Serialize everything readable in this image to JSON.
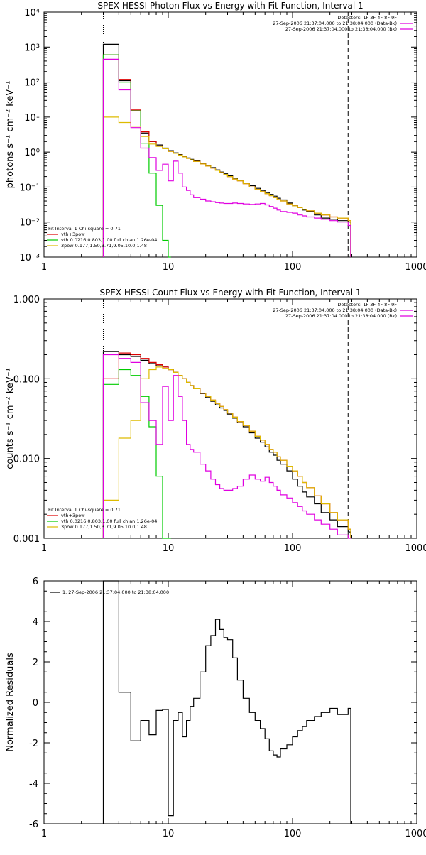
{
  "chart_data": [
    {
      "type": "line",
      "title": "SPEX HESSI Photon Flux vs Energy with Fit Function, Interval 1",
      "ylabel": "photons s⁻¹ cm⁻² keV⁻¹",
      "xlabel": "",
      "x_scale": "log",
      "y_scale": "log",
      "xlim": [
        1,
        1000
      ],
      "ylim": [
        0.001,
        10000
      ],
      "x_tick_labels": [
        "1",
        "10",
        "100",
        "1000"
      ],
      "y_tick_labels": [
        "10⁻³",
        "10⁻²",
        "10⁻¹",
        "10⁰",
        "10¹",
        "10²",
        "10³",
        "10⁴"
      ],
      "vlines": [
        {
          "x": 3,
          "style": "dotted",
          "color": "#000000"
        },
        {
          "x": 280,
          "style": "dashed",
          "color": "#000000"
        }
      ],
      "legend_top_right": [
        {
          "text": "Detectors: 1F 3F 4F 8F 9F",
          "color": "#000000"
        },
        {
          "text": "27-Sep-2006 21:37:04.000 to 21:38:04.000 (Data-Bk)",
          "color": "#e000e0"
        },
        {
          "text": "27-Sep-2006 21:37:04.000 to 21:38:04.000 (Bk)",
          "color": "#e000e0"
        }
      ],
      "legend_bottom_left": [
        {
          "text": "Fit Interval 1    Chi-square = 0.71",
          "color": "#000000"
        },
        {
          "text": "vth+3pow",
          "color": "#dd0000"
        },
        {
          "text": "vth 0.0216,0.803,1.00  full chian 1.26e-04",
          "color": "#00cc00"
        },
        {
          "text": "3pow 0.177,1.50,3.71,9.05,10.0,1.48",
          "color": "#ddbb00"
        }
      ],
      "series": [
        {
          "color": "#000000",
          "x": [
            3,
            4,
            5,
            6,
            7,
            8,
            9,
            10,
            11,
            12,
            13,
            14,
            15,
            16,
            18,
            20,
            22,
            24,
            26,
            28,
            30,
            33,
            36,
            40,
            45,
            50,
            55,
            60,
            65,
            70,
            75,
            80,
            90,
            100,
            110,
            120,
            130,
            150,
            170,
            200,
            230,
            280
          ],
          "y": [
            1200,
            110,
            15,
            3.5,
            2.0,
            1.6,
            1.3,
            1.1,
            0.95,
            0.85,
            0.75,
            0.68,
            0.62,
            0.56,
            0.48,
            0.41,
            0.36,
            0.31,
            0.27,
            0.24,
            0.21,
            0.18,
            0.155,
            0.13,
            0.11,
            0.092,
            0.08,
            0.07,
            0.062,
            0.055,
            0.048,
            0.043,
            0.035,
            0.029,
            0.026,
            0.022,
            0.02,
            0.016,
            0.013,
            0.012,
            0.011,
            0.01
          ]
        },
        {
          "color": "#dd0000",
          "x": [
            3,
            4,
            5,
            6,
            7,
            8,
            9,
            10,
            11,
            12,
            13,
            14,
            15,
            16,
            18,
            20,
            22,
            24,
            26,
            28,
            30,
            33,
            36,
            40,
            45,
            50,
            55,
            60,
            65,
            70,
            75,
            80,
            90,
            100,
            110,
            120,
            130,
            150,
            170,
            200,
            230,
            280
          ],
          "y": [
            600,
            120,
            16,
            3.8,
            2.0,
            1.5,
            1.25,
            1.05,
            0.92,
            0.82,
            0.73,
            0.66,
            0.6,
            0.54,
            0.46,
            0.4,
            0.35,
            0.3,
            0.26,
            0.23,
            0.2,
            0.17,
            0.15,
            0.125,
            0.1,
            0.085,
            0.074,
            0.065,
            0.057,
            0.05,
            0.044,
            0.04,
            0.033,
            0.029,
            0.026,
            0.023,
            0.021,
            0.018,
            0.016,
            0.014,
            0.013,
            0.011
          ]
        },
        {
          "color": "#00cc00",
          "x": [
            3,
            4,
            5,
            6,
            7,
            8,
            9,
            10
          ],
          "y": [
            600,
            100,
            15,
            1.8,
            0.25,
            0.03,
            0.003,
            0.001
          ]
        },
        {
          "color": "#ddbb00",
          "x": [
            3,
            4,
            5,
            6,
            7,
            8,
            9,
            10,
            11,
            12,
            13,
            14,
            15,
            16,
            18,
            20,
            22,
            24,
            26,
            28,
            30,
            33,
            36,
            40,
            45,
            50,
            55,
            60,
            65,
            70,
            75,
            80,
            90,
            100,
            110,
            120,
            130,
            150,
            170,
            200,
            230,
            280
          ],
          "y": [
            10,
            7,
            5.5,
            2.8,
            1.7,
            1.45,
            1.25,
            1.05,
            0.92,
            0.82,
            0.73,
            0.66,
            0.6,
            0.54,
            0.46,
            0.4,
            0.35,
            0.3,
            0.26,
            0.23,
            0.2,
            0.17,
            0.15,
            0.125,
            0.1,
            0.085,
            0.074,
            0.065,
            0.057,
            0.05,
            0.044,
            0.04,
            0.033,
            0.029,
            0.026,
            0.023,
            0.021,
            0.018,
            0.016,
            0.014,
            0.013,
            0.011
          ]
        },
        {
          "color": "#e000e0",
          "x": [
            3,
            4,
            5,
            6,
            7,
            8,
            9,
            10,
            11,
            12,
            13,
            14,
            15,
            16,
            18,
            20,
            22,
            24,
            26,
            28,
            30,
            33,
            36,
            40,
            45,
            50,
            55,
            60,
            65,
            70,
            75,
            80,
            90,
            100,
            110,
            120,
            130,
            150,
            170,
            200,
            230,
            280
          ],
          "y": [
            450,
            60,
            5,
            1.3,
            0.7,
            0.3,
            0.45,
            0.15,
            0.55,
            0.25,
            0.1,
            0.08,
            0.06,
            0.05,
            0.045,
            0.04,
            0.038,
            0.036,
            0.035,
            0.034,
            0.034,
            0.035,
            0.034,
            0.033,
            0.032,
            0.033,
            0.034,
            0.031,
            0.028,
            0.025,
            0.022,
            0.02,
            0.019,
            0.018,
            0.016,
            0.015,
            0.014,
            0.013,
            0.012,
            0.011,
            0.01,
            0.008
          ]
        }
      ]
    },
    {
      "type": "line",
      "title": "SPEX HESSI Count Flux vs Energy with Fit Function, Interval 1",
      "ylabel": "counts s⁻¹ cm⁻² keV⁻¹",
      "xlabel": "",
      "x_scale": "log",
      "y_scale": "log",
      "xlim": [
        1,
        1000
      ],
      "ylim": [
        0.001,
        1.0
      ],
      "x_tick_labels": [
        "1",
        "10",
        "100",
        "1000"
      ],
      "y_tick_labels": [
        "0.001",
        "0.010",
        "0.100",
        "1.000"
      ],
      "vlines": [
        {
          "x": 3,
          "style": "dotted",
          "color": "#000000"
        },
        {
          "x": 280,
          "style": "dashed",
          "color": "#000000"
        }
      ],
      "legend_top_right": [
        {
          "text": "Detectors: 1F 3F 4F 8F 9F",
          "color": "#000000"
        },
        {
          "text": "27-Sep-2006 21:37:04.000 to 21:38:04.000 (Data-Bk)",
          "color": "#e000e0"
        },
        {
          "text": "27-Sep-2006 21:37:04.000 to 21:38:04.000 (Bk)",
          "color": "#e000e0"
        }
      ],
      "legend_bottom_left": [
        {
          "text": "Fit Interval 1    Chi-square = 0.71",
          "color": "#000000"
        },
        {
          "text": "vth+3pow",
          "color": "#dd0000"
        },
        {
          "text": "vth 0.0216,0.803,1.00  full chian 1.26e-04",
          "color": "#00cc00"
        },
        {
          "text": "3pow 0.177,1.50,3.71,9.05,10.0,1.48",
          "color": "#ddbb00"
        }
      ],
      "series": [
        {
          "color": "#000000",
          "x": [
            3,
            4,
            5,
            6,
            7,
            8,
            9,
            10,
            11,
            12,
            13,
            14,
            15,
            16,
            18,
            20,
            22,
            24,
            26,
            28,
            30,
            33,
            36,
            40,
            45,
            50,
            55,
            60,
            65,
            70,
            75,
            80,
            90,
            100,
            110,
            120,
            130,
            150,
            170,
            200,
            230,
            280
          ],
          "y": [
            0.22,
            0.2,
            0.19,
            0.17,
            0.155,
            0.145,
            0.14,
            0.13,
            0.12,
            0.11,
            0.1,
            0.09,
            0.082,
            0.075,
            0.065,
            0.058,
            0.052,
            0.047,
            0.043,
            0.04,
            0.036,
            0.032,
            0.028,
            0.025,
            0.021,
            0.018,
            0.016,
            0.014,
            0.012,
            0.011,
            0.0095,
            0.0085,
            0.007,
            0.0055,
            0.0045,
            0.0038,
            0.0033,
            0.0027,
            0.0021,
            0.0017,
            0.0014,
            0.0012
          ]
        },
        {
          "color": "#dd0000",
          "x": [
            3,
            4,
            5,
            6,
            7,
            8,
            9,
            10,
            11,
            12,
            13,
            14,
            15,
            16,
            18,
            20,
            22,
            24,
            26,
            28,
            30,
            33,
            36,
            40,
            45,
            50,
            55,
            60,
            65,
            70,
            75,
            80,
            90,
            100,
            110,
            120,
            130,
            150,
            170,
            200,
            230,
            280
          ],
          "y": [
            0.1,
            0.21,
            0.2,
            0.18,
            0.16,
            0.15,
            0.14,
            0.13,
            0.12,
            0.11,
            0.1,
            0.09,
            0.082,
            0.075,
            0.066,
            0.06,
            0.054,
            0.049,
            0.045,
            0.041,
            0.037,
            0.033,
            0.029,
            0.026,
            0.022,
            0.019,
            0.017,
            0.015,
            0.013,
            0.012,
            0.0105,
            0.0095,
            0.008,
            0.007,
            0.006,
            0.005,
            0.0043,
            0.0034,
            0.0027,
            0.0021,
            0.0017,
            0.0013
          ]
        },
        {
          "color": "#00cc00",
          "x": [
            3,
            4,
            5,
            6,
            7,
            8,
            9,
            10
          ],
          "y": [
            0.085,
            0.13,
            0.11,
            0.06,
            0.025,
            0.006,
            0.001,
            0.001
          ]
        },
        {
          "color": "#ddbb00",
          "x": [
            3,
            4,
            5,
            6,
            7,
            8,
            9,
            10,
            11,
            12,
            13,
            14,
            15,
            16,
            18,
            20,
            22,
            24,
            26,
            28,
            30,
            33,
            36,
            40,
            45,
            50,
            55,
            60,
            65,
            70,
            75,
            80,
            90,
            100,
            110,
            120,
            130,
            150,
            170,
            200,
            230,
            280
          ],
          "y": [
            0.003,
            0.018,
            0.03,
            0.1,
            0.13,
            0.14,
            0.135,
            0.13,
            0.12,
            0.11,
            0.1,
            0.09,
            0.082,
            0.075,
            0.066,
            0.06,
            0.054,
            0.049,
            0.045,
            0.041,
            0.037,
            0.033,
            0.029,
            0.026,
            0.022,
            0.019,
            0.017,
            0.015,
            0.013,
            0.012,
            0.0105,
            0.0095,
            0.008,
            0.007,
            0.006,
            0.005,
            0.0043,
            0.0034,
            0.0027,
            0.0021,
            0.0017,
            0.0013
          ]
        },
        {
          "color": "#e000e0",
          "x": [
            3,
            4,
            5,
            6,
            7,
            8,
            9,
            10,
            11,
            12,
            13,
            14,
            15,
            16,
            18,
            20,
            22,
            24,
            26,
            28,
            30,
            33,
            36,
            40,
            45,
            50,
            55,
            60,
            65,
            70,
            75,
            80,
            90,
            100,
            110,
            120,
            130,
            150,
            170,
            200,
            230,
            280
          ],
          "y": [
            0.2,
            0.18,
            0.16,
            0.05,
            0.03,
            0.015,
            0.08,
            0.03,
            0.11,
            0.06,
            0.03,
            0.015,
            0.013,
            0.012,
            0.0085,
            0.007,
            0.0055,
            0.0047,
            0.0042,
            0.004,
            0.004,
            0.0042,
            0.0045,
            0.0055,
            0.0062,
            0.0055,
            0.0052,
            0.0058,
            0.005,
            0.0045,
            0.004,
            0.0035,
            0.0032,
            0.0028,
            0.0025,
            0.0022,
            0.002,
            0.0017,
            0.0015,
            0.0013,
            0.0011,
            0.0008
          ]
        }
      ]
    },
    {
      "type": "line",
      "title": "",
      "ylabel": "Normalized Residuals",
      "xlabel": "",
      "x_scale": "log",
      "y_scale": "linear",
      "xlim": [
        1,
        1000
      ],
      "ylim": [
        -6,
        6
      ],
      "x_tick_labels": [
        "1",
        "10",
        "100",
        "1000"
      ],
      "y_tick_labels": [
        "-6",
        "-4",
        "-2",
        "0",
        "2",
        "4",
        "6"
      ],
      "legend_top_left": [
        {
          "text": "1. 27-Sep-2006 21:37:04.000 to 21:38:04.000",
          "color": "#000000"
        }
      ],
      "series": [
        {
          "color": "#000000",
          "x": [
            3,
            4,
            5,
            6,
            7,
            8,
            9,
            10,
            11,
            12,
            13,
            14,
            15,
            16,
            18,
            20,
            22,
            24,
            26,
            28,
            30,
            33,
            36,
            40,
            45,
            50,
            55,
            60,
            65,
            70,
            75,
            80,
            90,
            100,
            110,
            120,
            130,
            150,
            170,
            200,
            230,
            280
          ],
          "y": [
            6,
            0.5,
            -1.9,
            -0.9,
            -1.6,
            -0.4,
            -0.35,
            -5.6,
            -0.9,
            -0.5,
            -1.7,
            -0.9,
            -0.2,
            0.2,
            1.5,
            2.8,
            3.3,
            4.1,
            3.6,
            3.2,
            3.1,
            2.2,
            1.1,
            0.2,
            -0.5,
            -0.9,
            -1.3,
            -1.8,
            -2.4,
            -2.6,
            -2.7,
            -2.3,
            -2.1,
            -1.7,
            -1.4,
            -1.2,
            -0.9,
            -0.7,
            -0.5,
            -0.3,
            -0.6,
            -0.3
          ]
        }
      ]
    }
  ]
}
